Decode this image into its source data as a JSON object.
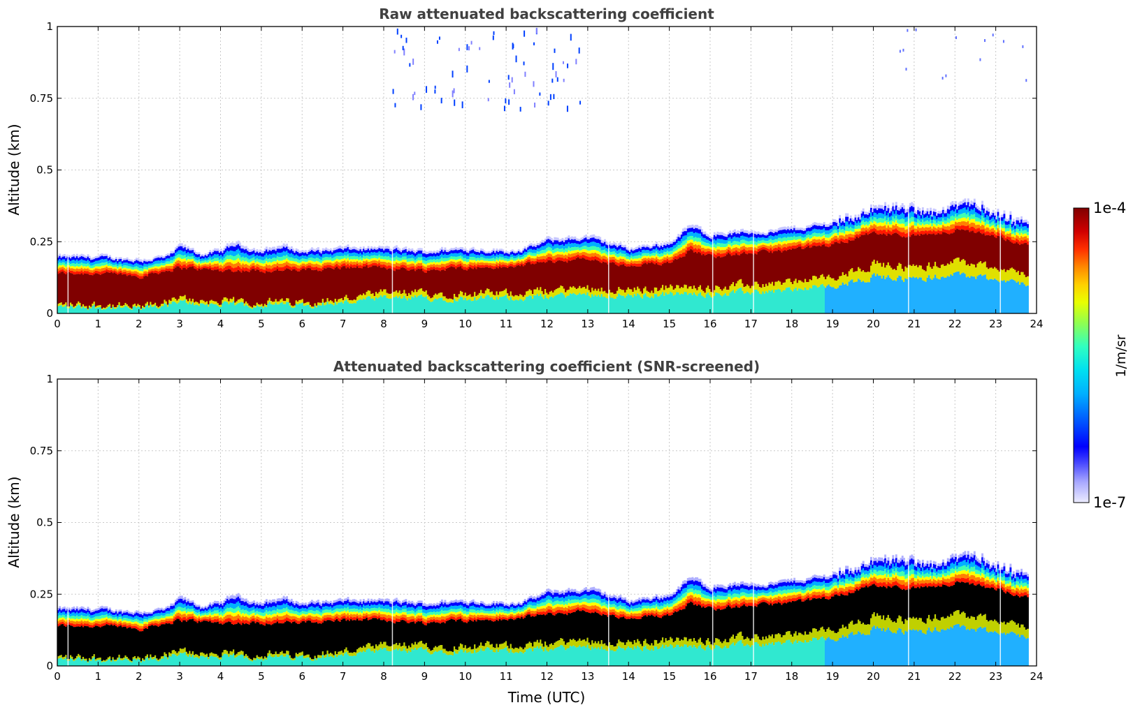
{
  "chart_data": [
    {
      "type": "heatmap",
      "title": "Raw attenuated backscattering coefficient",
      "xlabel": "",
      "ylabel": "Altitude (km)",
      "xlim": [
        0,
        24
      ],
      "ylim": [
        0,
        1
      ],
      "x_ticks": [
        "0",
        "1",
        "2",
        "3",
        "4",
        "5",
        "6",
        "7",
        "8",
        "9",
        "10",
        "11",
        "12",
        "13",
        "14",
        "15",
        "16",
        "17",
        "18",
        "19",
        "20",
        "21",
        "22",
        "23",
        "24"
      ],
      "y_ticks": [
        "0",
        "0.25",
        "0.5",
        "0.75",
        "1"
      ],
      "grid": true,
      "screened": false,
      "layer_top_km": [
        [
          0,
          0.2
        ],
        [
          1,
          0.2
        ],
        [
          2,
          0.19
        ],
        [
          2.7,
          0.2
        ],
        [
          3,
          0.24
        ],
        [
          3.5,
          0.21
        ],
        [
          4,
          0.22
        ],
        [
          4.3,
          0.25
        ],
        [
          5,
          0.22
        ],
        [
          5.5,
          0.24
        ],
        [
          6,
          0.22
        ],
        [
          7,
          0.23
        ],
        [
          8,
          0.23
        ],
        [
          9,
          0.22
        ],
        [
          10,
          0.23
        ],
        [
          11,
          0.22
        ],
        [
          11.5,
          0.23
        ],
        [
          12,
          0.26
        ],
        [
          13,
          0.27
        ],
        [
          14,
          0.23
        ],
        [
          15,
          0.25
        ],
        [
          15.5,
          0.31
        ],
        [
          16,
          0.28
        ],
        [
          17,
          0.29
        ],
        [
          17.5,
          0.29
        ],
        [
          18,
          0.3
        ],
        [
          19,
          0.32
        ],
        [
          20,
          0.37
        ],
        [
          20.7,
          0.38
        ],
        [
          21.5,
          0.35
        ],
        [
          22.2,
          0.4
        ],
        [
          23,
          0.35
        ],
        [
          23.8,
          0.31
        ]
      ],
      "core_top_km": [
        [
          0,
          0.14
        ],
        [
          1,
          0.14
        ],
        [
          2,
          0.13
        ],
        [
          3,
          0.16
        ],
        [
          4,
          0.15
        ],
        [
          5,
          0.15
        ],
        [
          6,
          0.15
        ],
        [
          7,
          0.16
        ],
        [
          8,
          0.16
        ],
        [
          9,
          0.15
        ],
        [
          10,
          0.16
        ],
        [
          11,
          0.16
        ],
        [
          12,
          0.18
        ],
        [
          13,
          0.19
        ],
        [
          14,
          0.16
        ],
        [
          15,
          0.18
        ],
        [
          15.5,
          0.22
        ],
        [
          16,
          0.2
        ],
        [
          17,
          0.21
        ],
        [
          18,
          0.22
        ],
        [
          19,
          0.24
        ],
        [
          20,
          0.28
        ],
        [
          21,
          0.27
        ],
        [
          22,
          0.29
        ],
        [
          23,
          0.27
        ],
        [
          23.8,
          0.24
        ]
      ],
      "core_bottom_km": [
        [
          0,
          0.03
        ],
        [
          1,
          0.03
        ],
        [
          2,
          0.02
        ],
        [
          3,
          0.05
        ],
        [
          4,
          0.04
        ],
        [
          5,
          0.04
        ],
        [
          6,
          0.04
        ],
        [
          7,
          0.05
        ],
        [
          8,
          0.07
        ],
        [
          9,
          0.07
        ],
        [
          10,
          0.07
        ],
        [
          11,
          0.07
        ],
        [
          12,
          0.08
        ],
        [
          13,
          0.09
        ],
        [
          14,
          0.08
        ],
        [
          15,
          0.09
        ],
        [
          16,
          0.09
        ],
        [
          17,
          0.1
        ],
        [
          18,
          0.11
        ],
        [
          19,
          0.13
        ],
        [
          20,
          0.17
        ],
        [
          21,
          0.16
        ],
        [
          22,
          0.18
        ],
        [
          23,
          0.16
        ],
        [
          23.8,
          0.13
        ]
      ],
      "data_end_hour": 23.8
    },
    {
      "type": "heatmap",
      "title": "Attenuated backscattering coefficient (SNR-screened)",
      "xlabel": "Time (UTC)",
      "ylabel": "Altitude (km)",
      "xlim": [
        0,
        24
      ],
      "ylim": [
        0,
        1
      ],
      "x_ticks": [
        "0",
        "1",
        "2",
        "3",
        "4",
        "5",
        "6",
        "7",
        "8",
        "9",
        "10",
        "11",
        "12",
        "13",
        "14",
        "15",
        "16",
        "17",
        "18",
        "19",
        "20",
        "21",
        "22",
        "23",
        "24"
      ],
      "y_ticks": [
        "0",
        "0.25",
        "0.5",
        "0.75",
        "1"
      ],
      "grid": true,
      "screened": true,
      "data_end_hour": 23.8
    }
  ],
  "colorbar": {
    "max_label": "1e-4",
    "min_label": "1e-7",
    "unit_label": "1/m/sr",
    "colors": [
      "#e8e8ff",
      "#b0b0ff",
      "#5050ff",
      "#0000ff",
      "#0060ff",
      "#00c0ff",
      "#00e0e0",
      "#40ffb0",
      "#a0ff40",
      "#ffff00",
      "#ffc000",
      "#ff7000",
      "#ff2000",
      "#d00000",
      "#800000"
    ]
  }
}
